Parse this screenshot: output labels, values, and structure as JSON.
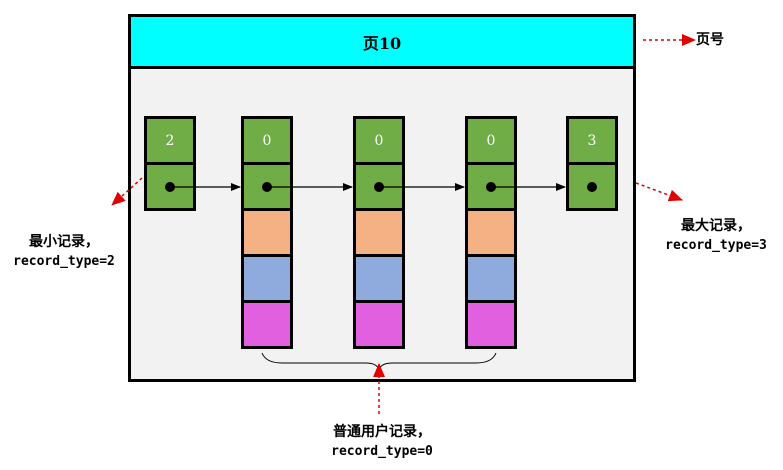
{
  "page": {
    "title": "页10"
  },
  "labels": {
    "page_number": "页号",
    "min_record_title": "最小记录，",
    "min_record_type": "record_type=2",
    "max_record_title": "最大记录，",
    "max_record_type": "record_type=3",
    "user_record_title": "普通用户记录，",
    "user_record_type": "record_type=0"
  },
  "records": [
    {
      "id": "infimum",
      "header_value": "2"
    },
    {
      "id": "user-1",
      "header_value": "0"
    },
    {
      "id": "user-2",
      "header_value": "0"
    },
    {
      "id": "user-3",
      "header_value": "0"
    },
    {
      "id": "supremum",
      "header_value": "3"
    }
  ],
  "colors": {
    "header_bg": "#00ffff",
    "record_header": "#70ad47",
    "field_1": "#f4b183",
    "field_2": "#8faadc",
    "field_3": "#e060e0",
    "callout_arrow": "#e00000"
  }
}
